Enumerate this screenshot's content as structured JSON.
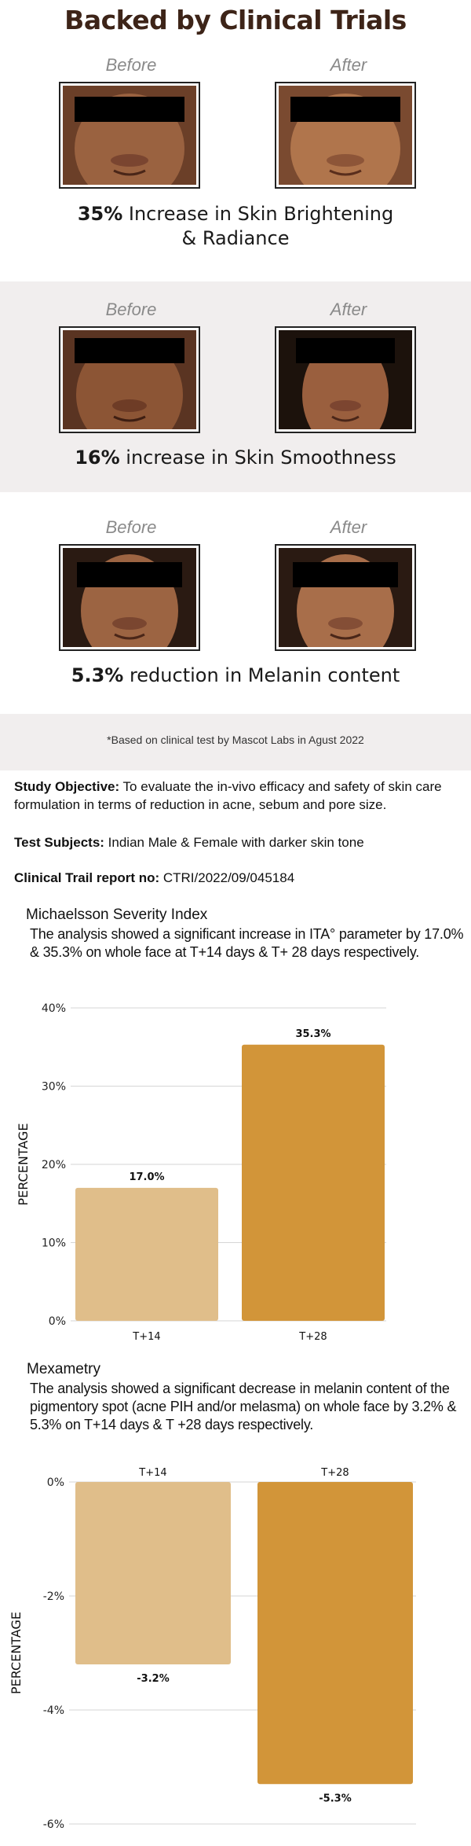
{
  "title": "Backed by Clinical Trials",
  "labels": {
    "before": "Before",
    "after": "After"
  },
  "results": [
    {
      "highlight": "35%",
      "text": " Increase in Skin Brightening",
      "text2": "& Radiance"
    },
    {
      "highlight": "16%",
      "text": " increase in Skin Smoothness"
    },
    {
      "highlight": "5.3%",
      "text": " reduction in Melanin content"
    }
  ],
  "footnote": "*Based on clinical test by Mascot Labs in Agust 2022",
  "study": {
    "objective_label": "Study Objective:",
    "objective_text": "  To evaluate the in-vivo efficacy and safety of skin care formulation in terms of reduction in acne, sebum and pore size.",
    "subjects_label": "Test Subjects:",
    "subjects_text": " Indian Male & Female with darker skin tone",
    "report_label": "Clinical Trail report no:",
    "report_text": " CTRI/2022/09/045184"
  },
  "michaelsson": {
    "heading": "Michaelsson Severity Index",
    "text": "The analysis showed a significant increase in ITA° parameter by 17.0% & 35.3% on whole face at T+14 days & T+ 28 days respectively."
  },
  "mexametry": {
    "heading": "Mexametry",
    "text": "The analysis showed a significant decrease in melanin content of the pigmentory spot (acne PIH and/or melasma) on whole face by 3.2% & 5.3% on T+14 days & T +28 days respectively."
  },
  "chart_data": [
    {
      "type": "bar",
      "categories": [
        "T+14",
        "T+28"
      ],
      "values": [
        17.0,
        35.3
      ],
      "value_labels": [
        "17.0%",
        "35.3%"
      ],
      "ylabel": "PERCENTAGE",
      "ylim": [
        0,
        40
      ],
      "yticks": [
        "0%",
        "10%",
        "20%",
        "30%",
        "40%"
      ],
      "colors": [
        "#e0be8a",
        "#d29539"
      ],
      "grid": true
    },
    {
      "type": "bar",
      "categories": [
        "T+14",
        "T+28"
      ],
      "values": [
        -3.2,
        -5.3
      ],
      "value_labels": [
        "-3.2%",
        "-5.3%"
      ],
      "ylabel": "PERCENTAGE",
      "ylim": [
        -6,
        0
      ],
      "yticks": [
        "0%",
        "-2%",
        "-4%",
        "-6%"
      ],
      "colors": [
        "#e0be8a",
        "#d29539"
      ],
      "grid": true
    }
  ]
}
